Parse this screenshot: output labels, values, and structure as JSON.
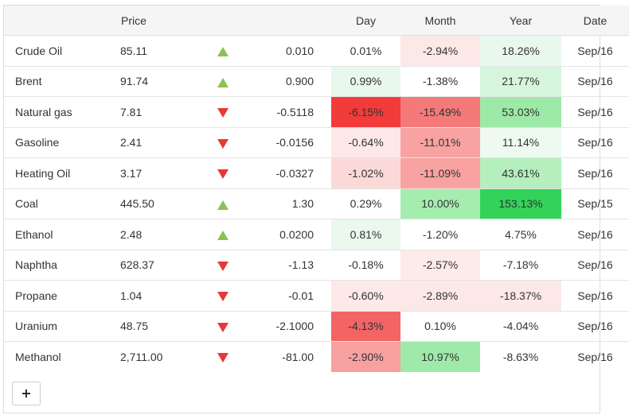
{
  "headers": {
    "name": "",
    "price": "Price",
    "arrow": "",
    "change": "",
    "day": "Day",
    "month": "Month",
    "year": "Year",
    "date": "Date"
  },
  "rows": [
    {
      "name": "Crude Oil",
      "price": "85.11",
      "direction": "up",
      "change": "0.010",
      "day": "0.01%",
      "month": "-2.94%",
      "year": "18.26%",
      "date": "Sep/16",
      "day_bg": "#ffffff",
      "month_bg": "#fde8e8",
      "year_bg": "#e9f8ec"
    },
    {
      "name": "Brent",
      "price": "91.74",
      "direction": "up",
      "change": "0.900",
      "day": "0.99%",
      "month": "-1.38%",
      "year": "21.77%",
      "date": "Sep/16",
      "day_bg": "#e9f8ec",
      "month_bg": "#ffffff",
      "year_bg": "#d6f5dd"
    },
    {
      "name": "Natural gas",
      "price": "7.81",
      "direction": "down",
      "change": "-0.5118",
      "day": "-6.15%",
      "month": "-15.49%",
      "year": "53.03%",
      "date": "Sep/16",
      "day_bg": "#f23b3b",
      "month_bg": "#f47a7a",
      "year_bg": "#9deaa8"
    },
    {
      "name": "Gasoline",
      "price": "2.41",
      "direction": "down",
      "change": "-0.0156",
      "day": "-0.64%",
      "month": "-11.01%",
      "year": "11.14%",
      "date": "Sep/16",
      "day_bg": "#fde8e8",
      "month_bg": "#f8a2a2",
      "year_bg": "#eefaf0"
    },
    {
      "name": "Heating Oil",
      "price": "3.17",
      "direction": "down",
      "change": "-0.0327",
      "day": "-1.02%",
      "month": "-11.09%",
      "year": "43.61%",
      "date": "Sep/16",
      "day_bg": "#fcd9d9",
      "month_bg": "#f8a2a2",
      "year_bg": "#b4efbd"
    },
    {
      "name": "Coal",
      "price": "445.50",
      "direction": "up",
      "change": "1.30",
      "day": "0.29%",
      "month": "10.00%",
      "year": "153.13%",
      "date": "Sep/15",
      "day_bg": "#ffffff",
      "month_bg": "#a5ecaf",
      "year_bg": "#33d35a"
    },
    {
      "name": "Ethanol",
      "price": "2.48",
      "direction": "up",
      "change": "0.0200",
      "day": "0.81%",
      "month": "-1.20%",
      "year": "4.75%",
      "date": "Sep/16",
      "day_bg": "#eaf8ed",
      "month_bg": "#ffffff",
      "year_bg": "#ffffff"
    },
    {
      "name": "Naphtha",
      "price": "628.37",
      "direction": "down",
      "change": "-1.13",
      "day": "-0.18%",
      "month": "-2.57%",
      "year": "-7.18%",
      "date": "Sep/16",
      "day_bg": "#ffffff",
      "month_bg": "#fdeaea",
      "year_bg": "#ffffff"
    },
    {
      "name": "Propane",
      "price": "1.04",
      "direction": "down",
      "change": "-0.01",
      "day": "-0.60%",
      "month": "-2.89%",
      "year": "-18.37%",
      "date": "Sep/16",
      "day_bg": "#fde9e9",
      "month_bg": "#fde8e8",
      "year_bg": "#fde8e8"
    },
    {
      "name": "Uranium",
      "price": "48.75",
      "direction": "down",
      "change": "-2.1000",
      "day": "-4.13%",
      "month": "0.10%",
      "year": "-4.04%",
      "date": "Sep/16",
      "day_bg": "#f46464",
      "month_bg": "#ffffff",
      "year_bg": "#ffffff"
    },
    {
      "name": "Methanol",
      "price": "2,711.00",
      "direction": "down",
      "change": "-81.00",
      "day": "-2.90%",
      "month": "10.97%",
      "year": "-8.63%",
      "date": "Sep/16",
      "day_bg": "#f7a0a0",
      "month_bg": "#9fe9aa",
      "year_bg": "#ffffff"
    }
  ],
  "add_button": {
    "label": "+"
  },
  "colors": {
    "up_arrow": "#8cc152",
    "down_arrow": "#e53935",
    "header_bg": "#f5f5f5",
    "border": "#dddddd"
  }
}
